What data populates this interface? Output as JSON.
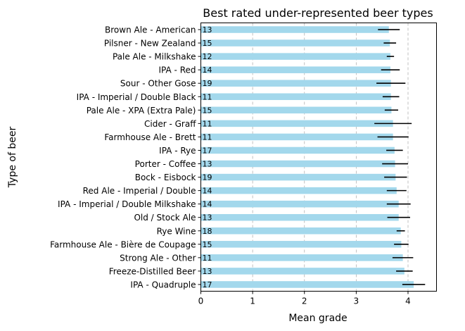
{
  "chart_data": {
    "type": "bar",
    "orientation": "horizontal",
    "title": "Best rated under-represented beer types",
    "xlabel": "Mean grade",
    "ylabel": "Type of beer",
    "xlim": [
      0,
      4.55
    ],
    "xticks": [
      0,
      1,
      2,
      3,
      4
    ],
    "grid": "x-dashed",
    "bar_color": "#a3d8ec",
    "errorbar_color": "#000000",
    "categories": [
      "Brown Ale - American",
      "Pilsner - New Zealand",
      "Pale Ale - Milkshake",
      "IPA - Red",
      "Sour - Other Gose",
      "IPA - Imperial / Double Black",
      "Pale Ale - XPA (Extra Pale)",
      "Cider - Graff",
      "Farmhouse Ale - Brett",
      "IPA - Rye",
      "Porter - Coffee",
      "Bock - Eisbock",
      "Red Ale - Imperial / Double",
      "IPA - Imperial / Double Milkshake",
      "Old / Stock Ale",
      "Rye Wine",
      "Farmhouse Ale - Bière de Coupage",
      "Strong Ale - Other",
      "Freeze-Distilled Beer",
      "IPA - Quadruple"
    ],
    "values": [
      3.63,
      3.65,
      3.66,
      3.66,
      3.67,
      3.67,
      3.68,
      3.71,
      3.71,
      3.74,
      3.75,
      3.76,
      3.78,
      3.82,
      3.82,
      3.86,
      3.87,
      3.9,
      3.93,
      4.11
    ],
    "errors": [
      0.21,
      0.12,
      0.07,
      0.18,
      0.28,
      0.16,
      0.13,
      0.36,
      0.3,
      0.16,
      0.25,
      0.22,
      0.19,
      0.23,
      0.22,
      0.08,
      0.14,
      0.2,
      0.16,
      0.22
    ],
    "counts": [
      "13",
      "15",
      "12",
      "14",
      "19",
      "11",
      "15",
      "11",
      "11",
      "17",
      "13",
      "19",
      "14",
      "14",
      "13",
      "18",
      "15",
      "11",
      "13",
      "17"
    ]
  }
}
